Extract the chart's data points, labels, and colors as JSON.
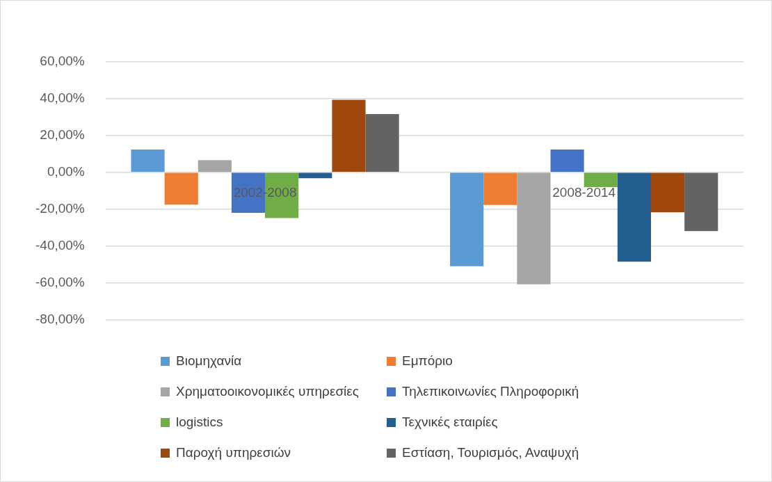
{
  "chart_data": {
    "type": "bar",
    "categories": [
      "2002-2008",
      "2008-2014"
    ],
    "series": [
      {
        "name": "Βιομηχανία",
        "color": "#5b9bd5",
        "values": [
          12.4,
          -51
        ]
      },
      {
        "name": "Εμπόριο",
        "color": "#ed7d31",
        "values": [
          -17.5,
          -17.7
        ]
      },
      {
        "name": "Χρηματοοικονομικές υπηρεσίες",
        "color": "#a5a5a5",
        "values": [
          6.6,
          -60.8
        ]
      },
      {
        "name": "Τηλεπικοινωνίες Πληροφορική",
        "color": "#4472c4",
        "values": [
          -22,
          12.4
        ]
      },
      {
        "name": "logistics",
        "color": "#70ad47",
        "values": [
          -24.8,
          -8
        ]
      },
      {
        "name": "Τεχνικές εταιρίες",
        "color": "#255e91",
        "values": [
          -3.2,
          -48.5
        ]
      },
      {
        "name": "Παροχή υπηρεσιών",
        "color": "#9e480e",
        "values": [
          39.4,
          -21.7
        ]
      },
      {
        "name": "Εστίαση, Τουρισμός, Αναψυχή",
        "color": "#636363",
        "values": [
          31.7,
          -31.9
        ]
      }
    ],
    "ylim": [
      -80,
      60
    ],
    "yticks": [
      {
        "value": -80,
        "label": "-80,00%"
      },
      {
        "value": -60,
        "label": "-60,00%"
      },
      {
        "value": -40,
        "label": "-40,00%"
      },
      {
        "value": -20,
        "label": "-20,00%"
      },
      {
        "value": 0,
        "label": "0,00%"
      },
      {
        "value": 20,
        "label": "20,00%"
      },
      {
        "value": 40,
        "label": "40,00%"
      },
      {
        "value": 60,
        "label": "60,00%"
      }
    ],
    "grid": "y",
    "legend": "bottom"
  }
}
